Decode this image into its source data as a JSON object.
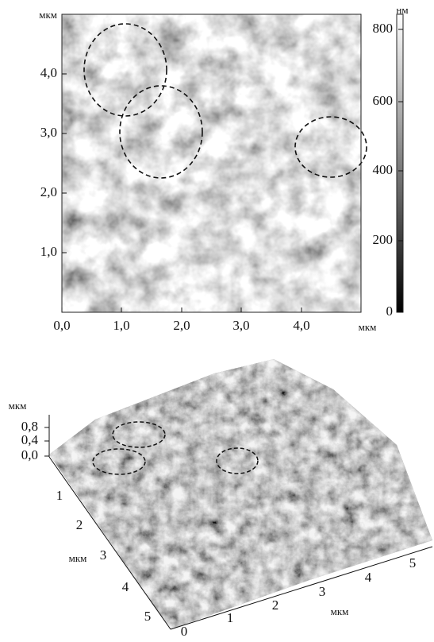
{
  "top_map": {
    "y_axis_unit": "мкм",
    "y_ticks": [
      "4,0",
      "3,0",
      "2,0",
      "1,0"
    ],
    "x_ticks": [
      "0,0",
      "1,0",
      "2,0",
      "3,0",
      "4,0"
    ],
    "x_axis_unit": "мкм"
  },
  "colorbar": {
    "unit": "нм",
    "ticks": [
      "800",
      "600",
      "400",
      "200",
      "0"
    ]
  },
  "surface_3d": {
    "z_axis_unit": "мкм",
    "z_ticks": [
      "0,8",
      "0,4",
      "0,0"
    ],
    "left_ticks": [
      "1",
      "2",
      "3",
      "4",
      "5"
    ],
    "left_axis_unit": "мкм",
    "bottom_ticks": [
      "0",
      "1",
      "2",
      "3",
      "4",
      "5"
    ],
    "bottom_axis_unit": "мкм"
  }
}
